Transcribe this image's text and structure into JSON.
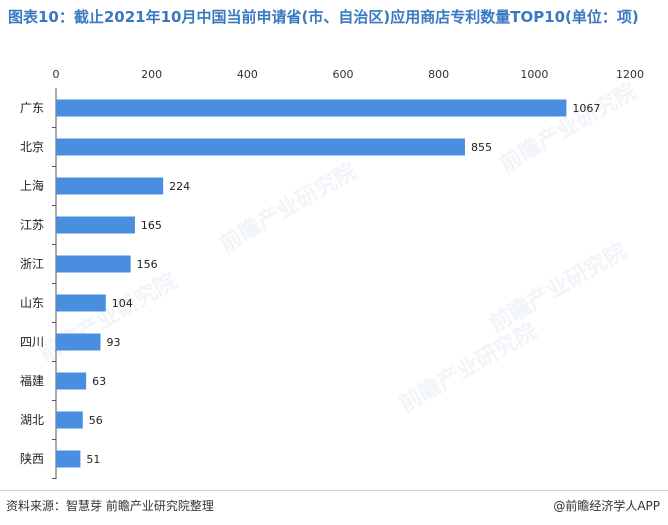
{
  "title": "图表10：截止2021年10月中国当前申请省(市、自治区)应用商店专利数量TOP10(单位：项)",
  "source": "资料来源：智慧芽 前瞻产业研究院整理",
  "copyright": "@前瞻经济学人APP",
  "watermark": "前瞻产业研究院",
  "colors": {
    "bar": "#4a8ee0",
    "title": "#3a78c2",
    "axis": "#333333"
  },
  "chart_data": {
    "type": "bar",
    "orientation": "horizontal",
    "categories": [
      "广东",
      "北京",
      "上海",
      "江苏",
      "浙江",
      "山东",
      "四川",
      "福建",
      "湖北",
      "陕西"
    ],
    "values": [
      1067,
      855,
      224,
      165,
      156,
      104,
      93,
      63,
      56,
      51
    ],
    "xlim": [
      0,
      1200
    ],
    "xticks": [
      "0",
      "200",
      "400",
      "600",
      "800",
      "1000",
      "1200"
    ],
    "grid": false,
    "data_labels": true
  }
}
